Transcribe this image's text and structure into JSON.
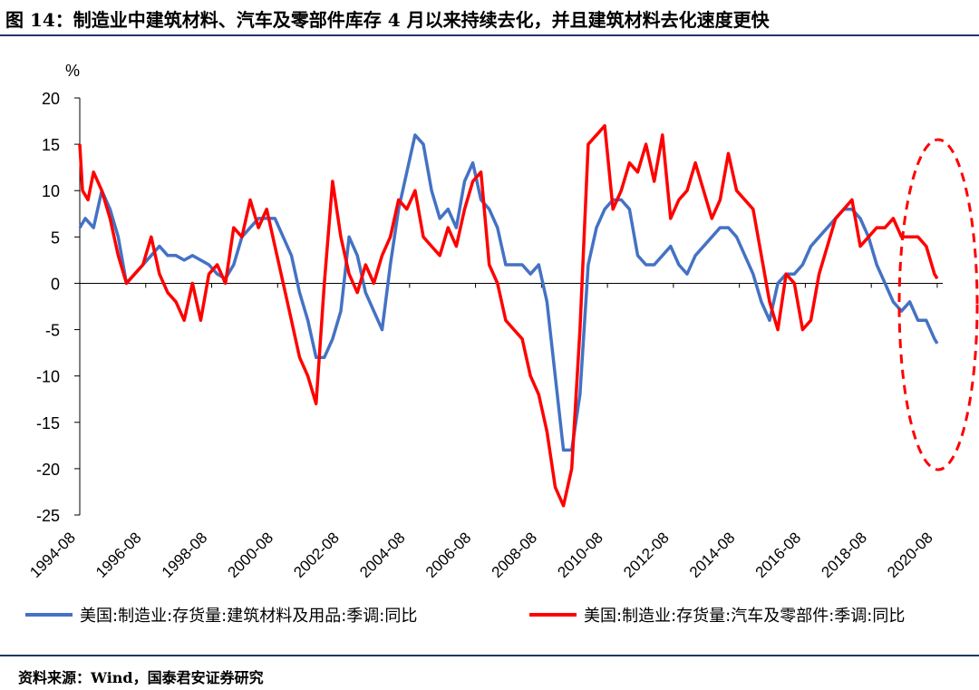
{
  "header": {
    "title": "图 14：制造业中建筑材料、汽车及零部件库存 4 月以来持续去化，并且建筑材料去化速度更快"
  },
  "footer": {
    "source": "资料来源：Wind，国泰君安证券研究"
  },
  "colors": {
    "series_1": "#4472c4",
    "series_2": "#ff0000",
    "annotation": "#ff0000",
    "axis": "#000000"
  },
  "chart_data": {
    "type": "line",
    "title": "",
    "ylabel": "%",
    "xlabel": "",
    "ylim": [
      -25,
      20
    ],
    "yticks": [
      20,
      15,
      10,
      5,
      0,
      -5,
      -10,
      -15,
      -20,
      -25
    ],
    "xlim": [
      "1994-08",
      "2020-10"
    ],
    "xtick_labels": [
      "1994-08",
      "1996-08",
      "1998-08",
      "2000-08",
      "2002-08",
      "2004-08",
      "2006-08",
      "2008-08",
      "2010-08",
      "2012-08",
      "2014-08",
      "2016-08",
      "2018-08",
      "2020-08"
    ],
    "grid": false,
    "legend_position": "bottom",
    "annotation": "dashed red ellipse highlighting 2019-2020",
    "series": [
      {
        "name": "美国:制造业:存货量:建筑材料及用品:季调:同比",
        "points": [
          [
            "1994-08",
            6
          ],
          [
            "1994-10",
            7
          ],
          [
            "1995-01",
            6
          ],
          [
            "1995-04",
            10
          ],
          [
            "1995-07",
            8
          ],
          [
            "1995-10",
            5
          ],
          [
            "1996-01",
            0
          ],
          [
            "1996-04",
            1
          ],
          [
            "1996-07",
            2
          ],
          [
            "1996-10",
            3
          ],
          [
            "1997-01",
            4
          ],
          [
            "1997-04",
            3
          ],
          [
            "1997-07",
            3
          ],
          [
            "1997-10",
            2.5
          ],
          [
            "1998-01",
            3
          ],
          [
            "1998-04",
            2.5
          ],
          [
            "1998-07",
            2
          ],
          [
            "1998-10",
            1
          ],
          [
            "1999-01",
            0.5
          ],
          [
            "1999-04",
            2
          ],
          [
            "1999-07",
            5
          ],
          [
            "1999-10",
            6
          ],
          [
            "2000-01",
            7
          ],
          [
            "2000-04",
            7
          ],
          [
            "2000-07",
            7
          ],
          [
            "2000-10",
            5
          ],
          [
            "2001-01",
            3
          ],
          [
            "2001-04",
            -1
          ],
          [
            "2001-07",
            -4
          ],
          [
            "2001-10",
            -8
          ],
          [
            "2002-01",
            -8
          ],
          [
            "2002-04",
            -6
          ],
          [
            "2002-07",
            -3
          ],
          [
            "2002-10",
            5
          ],
          [
            "2003-01",
            3
          ],
          [
            "2003-04",
            -1
          ],
          [
            "2003-07",
            -3
          ],
          [
            "2003-10",
            -5
          ],
          [
            "2004-01",
            2
          ],
          [
            "2004-04",
            8
          ],
          [
            "2004-07",
            12
          ],
          [
            "2004-10",
            16
          ],
          [
            "2005-01",
            15
          ],
          [
            "2005-04",
            10
          ],
          [
            "2005-07",
            7
          ],
          [
            "2005-10",
            8
          ],
          [
            "2006-01",
            6
          ],
          [
            "2006-04",
            11
          ],
          [
            "2006-07",
            13
          ],
          [
            "2006-10",
            9
          ],
          [
            "2007-01",
            8
          ],
          [
            "2007-04",
            6
          ],
          [
            "2007-07",
            2
          ],
          [
            "2007-10",
            2
          ],
          [
            "2008-01",
            2
          ],
          [
            "2008-04",
            1
          ],
          [
            "2008-07",
            2
          ],
          [
            "2008-10",
            -2
          ],
          [
            "2009-01",
            -10
          ],
          [
            "2009-04",
            -18
          ],
          [
            "2009-07",
            -18
          ],
          [
            "2009-10",
            -12
          ],
          [
            "2010-01",
            2
          ],
          [
            "2010-04",
            6
          ],
          [
            "2010-07",
            8
          ],
          [
            "2010-10",
            9
          ],
          [
            "2011-01",
            9
          ],
          [
            "2011-04",
            8
          ],
          [
            "2011-07",
            3
          ],
          [
            "2011-10",
            2
          ],
          [
            "2012-01",
            2
          ],
          [
            "2012-04",
            3
          ],
          [
            "2012-07",
            4
          ],
          [
            "2012-10",
            2
          ],
          [
            "2013-01",
            1
          ],
          [
            "2013-04",
            3
          ],
          [
            "2013-07",
            4
          ],
          [
            "2013-10",
            5
          ],
          [
            "2014-01",
            6
          ],
          [
            "2014-04",
            6
          ],
          [
            "2014-07",
            5
          ],
          [
            "2014-10",
            3
          ],
          [
            "2015-01",
            1
          ],
          [
            "2015-04",
            -2
          ],
          [
            "2015-07",
            -4
          ],
          [
            "2015-10",
            0
          ],
          [
            "2016-01",
            1
          ],
          [
            "2016-04",
            1
          ],
          [
            "2016-07",
            2
          ],
          [
            "2016-10",
            4
          ],
          [
            "2017-01",
            5
          ],
          [
            "2017-04",
            6
          ],
          [
            "2017-07",
            7
          ],
          [
            "2017-10",
            8
          ],
          [
            "2018-01",
            8
          ],
          [
            "2018-04",
            7
          ],
          [
            "2018-07",
            5
          ],
          [
            "2018-10",
            2
          ],
          [
            "2019-01",
            0
          ],
          [
            "2019-04",
            -2
          ],
          [
            "2019-07",
            -3
          ],
          [
            "2019-10",
            -2
          ],
          [
            "2020-01",
            -4
          ],
          [
            "2020-04",
            -4
          ],
          [
            "2020-07",
            -6
          ],
          [
            "2020-08",
            -6.5
          ]
        ]
      },
      {
        "name": "美国:制造业:存货量:汽车及零部件:季调:同比",
        "points": [
          [
            "1994-08",
            15
          ],
          [
            "1994-09",
            10
          ],
          [
            "1994-11",
            9
          ],
          [
            "1995-01",
            12
          ],
          [
            "1995-04",
            10
          ],
          [
            "1995-07",
            7
          ],
          [
            "1995-10",
            3
          ],
          [
            "1996-01",
            0
          ],
          [
            "1996-04",
            1
          ],
          [
            "1996-07",
            2
          ],
          [
            "1996-10",
            5
          ],
          [
            "1997-01",
            1
          ],
          [
            "1997-04",
            -1
          ],
          [
            "1997-07",
            -2
          ],
          [
            "1997-10",
            -4
          ],
          [
            "1998-01",
            0
          ],
          [
            "1998-04",
            -4
          ],
          [
            "1998-07",
            1
          ],
          [
            "1998-10",
            2
          ],
          [
            "1999-01",
            0
          ],
          [
            "1999-04",
            6
          ],
          [
            "1999-07",
            5
          ],
          [
            "1999-10",
            9
          ],
          [
            "2000-01",
            6
          ],
          [
            "2000-04",
            8
          ],
          [
            "2000-07",
            4
          ],
          [
            "2000-10",
            0
          ],
          [
            "2001-01",
            -4
          ],
          [
            "2001-04",
            -8
          ],
          [
            "2001-07",
            -10
          ],
          [
            "2001-10",
            -13
          ],
          [
            "2002-01",
            0
          ],
          [
            "2002-04",
            11
          ],
          [
            "2002-07",
            5
          ],
          [
            "2002-10",
            1
          ],
          [
            "2003-01",
            -1
          ],
          [
            "2003-04",
            2
          ],
          [
            "2003-07",
            0
          ],
          [
            "2003-10",
            3
          ],
          [
            "2004-01",
            5
          ],
          [
            "2004-04",
            9
          ],
          [
            "2004-07",
            8
          ],
          [
            "2004-10",
            10
          ],
          [
            "2005-01",
            5
          ],
          [
            "2005-04",
            4
          ],
          [
            "2005-07",
            3
          ],
          [
            "2005-10",
            6
          ],
          [
            "2006-01",
            4
          ],
          [
            "2006-04",
            8
          ],
          [
            "2006-07",
            11
          ],
          [
            "2006-10",
            12
          ],
          [
            "2007-01",
            2
          ],
          [
            "2007-04",
            0
          ],
          [
            "2007-07",
            -4
          ],
          [
            "2007-10",
            -5
          ],
          [
            "2008-01",
            -6
          ],
          [
            "2008-04",
            -10
          ],
          [
            "2008-07",
            -12
          ],
          [
            "2008-10",
            -16
          ],
          [
            "2009-01",
            -22
          ],
          [
            "2009-04",
            -24
          ],
          [
            "2009-07",
            -20
          ],
          [
            "2009-10",
            -5
          ],
          [
            "2010-01",
            15
          ],
          [
            "2010-04",
            16
          ],
          [
            "2010-07",
            17
          ],
          [
            "2010-10",
            8
          ],
          [
            "2011-01",
            10
          ],
          [
            "2011-04",
            13
          ],
          [
            "2011-07",
            12
          ],
          [
            "2011-10",
            15
          ],
          [
            "2012-01",
            11
          ],
          [
            "2012-04",
            16
          ],
          [
            "2012-07",
            7
          ],
          [
            "2012-10",
            9
          ],
          [
            "2013-01",
            10
          ],
          [
            "2013-04",
            13
          ],
          [
            "2013-07",
            10
          ],
          [
            "2013-10",
            7
          ],
          [
            "2014-01",
            9
          ],
          [
            "2014-04",
            14
          ],
          [
            "2014-07",
            10
          ],
          [
            "2014-10",
            9
          ],
          [
            "2015-01",
            8
          ],
          [
            "2015-04",
            3
          ],
          [
            "2015-07",
            -2
          ],
          [
            "2015-10",
            -5
          ],
          [
            "2016-01",
            1
          ],
          [
            "2016-04",
            0
          ],
          [
            "2016-07",
            -5
          ],
          [
            "2016-10",
            -4
          ],
          [
            "2017-01",
            1
          ],
          [
            "2017-04",
            4
          ],
          [
            "2017-07",
            7
          ],
          [
            "2017-10",
            8
          ],
          [
            "2018-01",
            9
          ],
          [
            "2018-04",
            4
          ],
          [
            "2018-07",
            5
          ],
          [
            "2018-10",
            6
          ],
          [
            "2019-01",
            6
          ],
          [
            "2019-04",
            7
          ],
          [
            "2019-07",
            5
          ],
          [
            "2019-10",
            5
          ],
          [
            "2020-01",
            5
          ],
          [
            "2020-04",
            4
          ],
          [
            "2020-07",
            1
          ],
          [
            "2020-08",
            0.5
          ]
        ]
      }
    ]
  }
}
